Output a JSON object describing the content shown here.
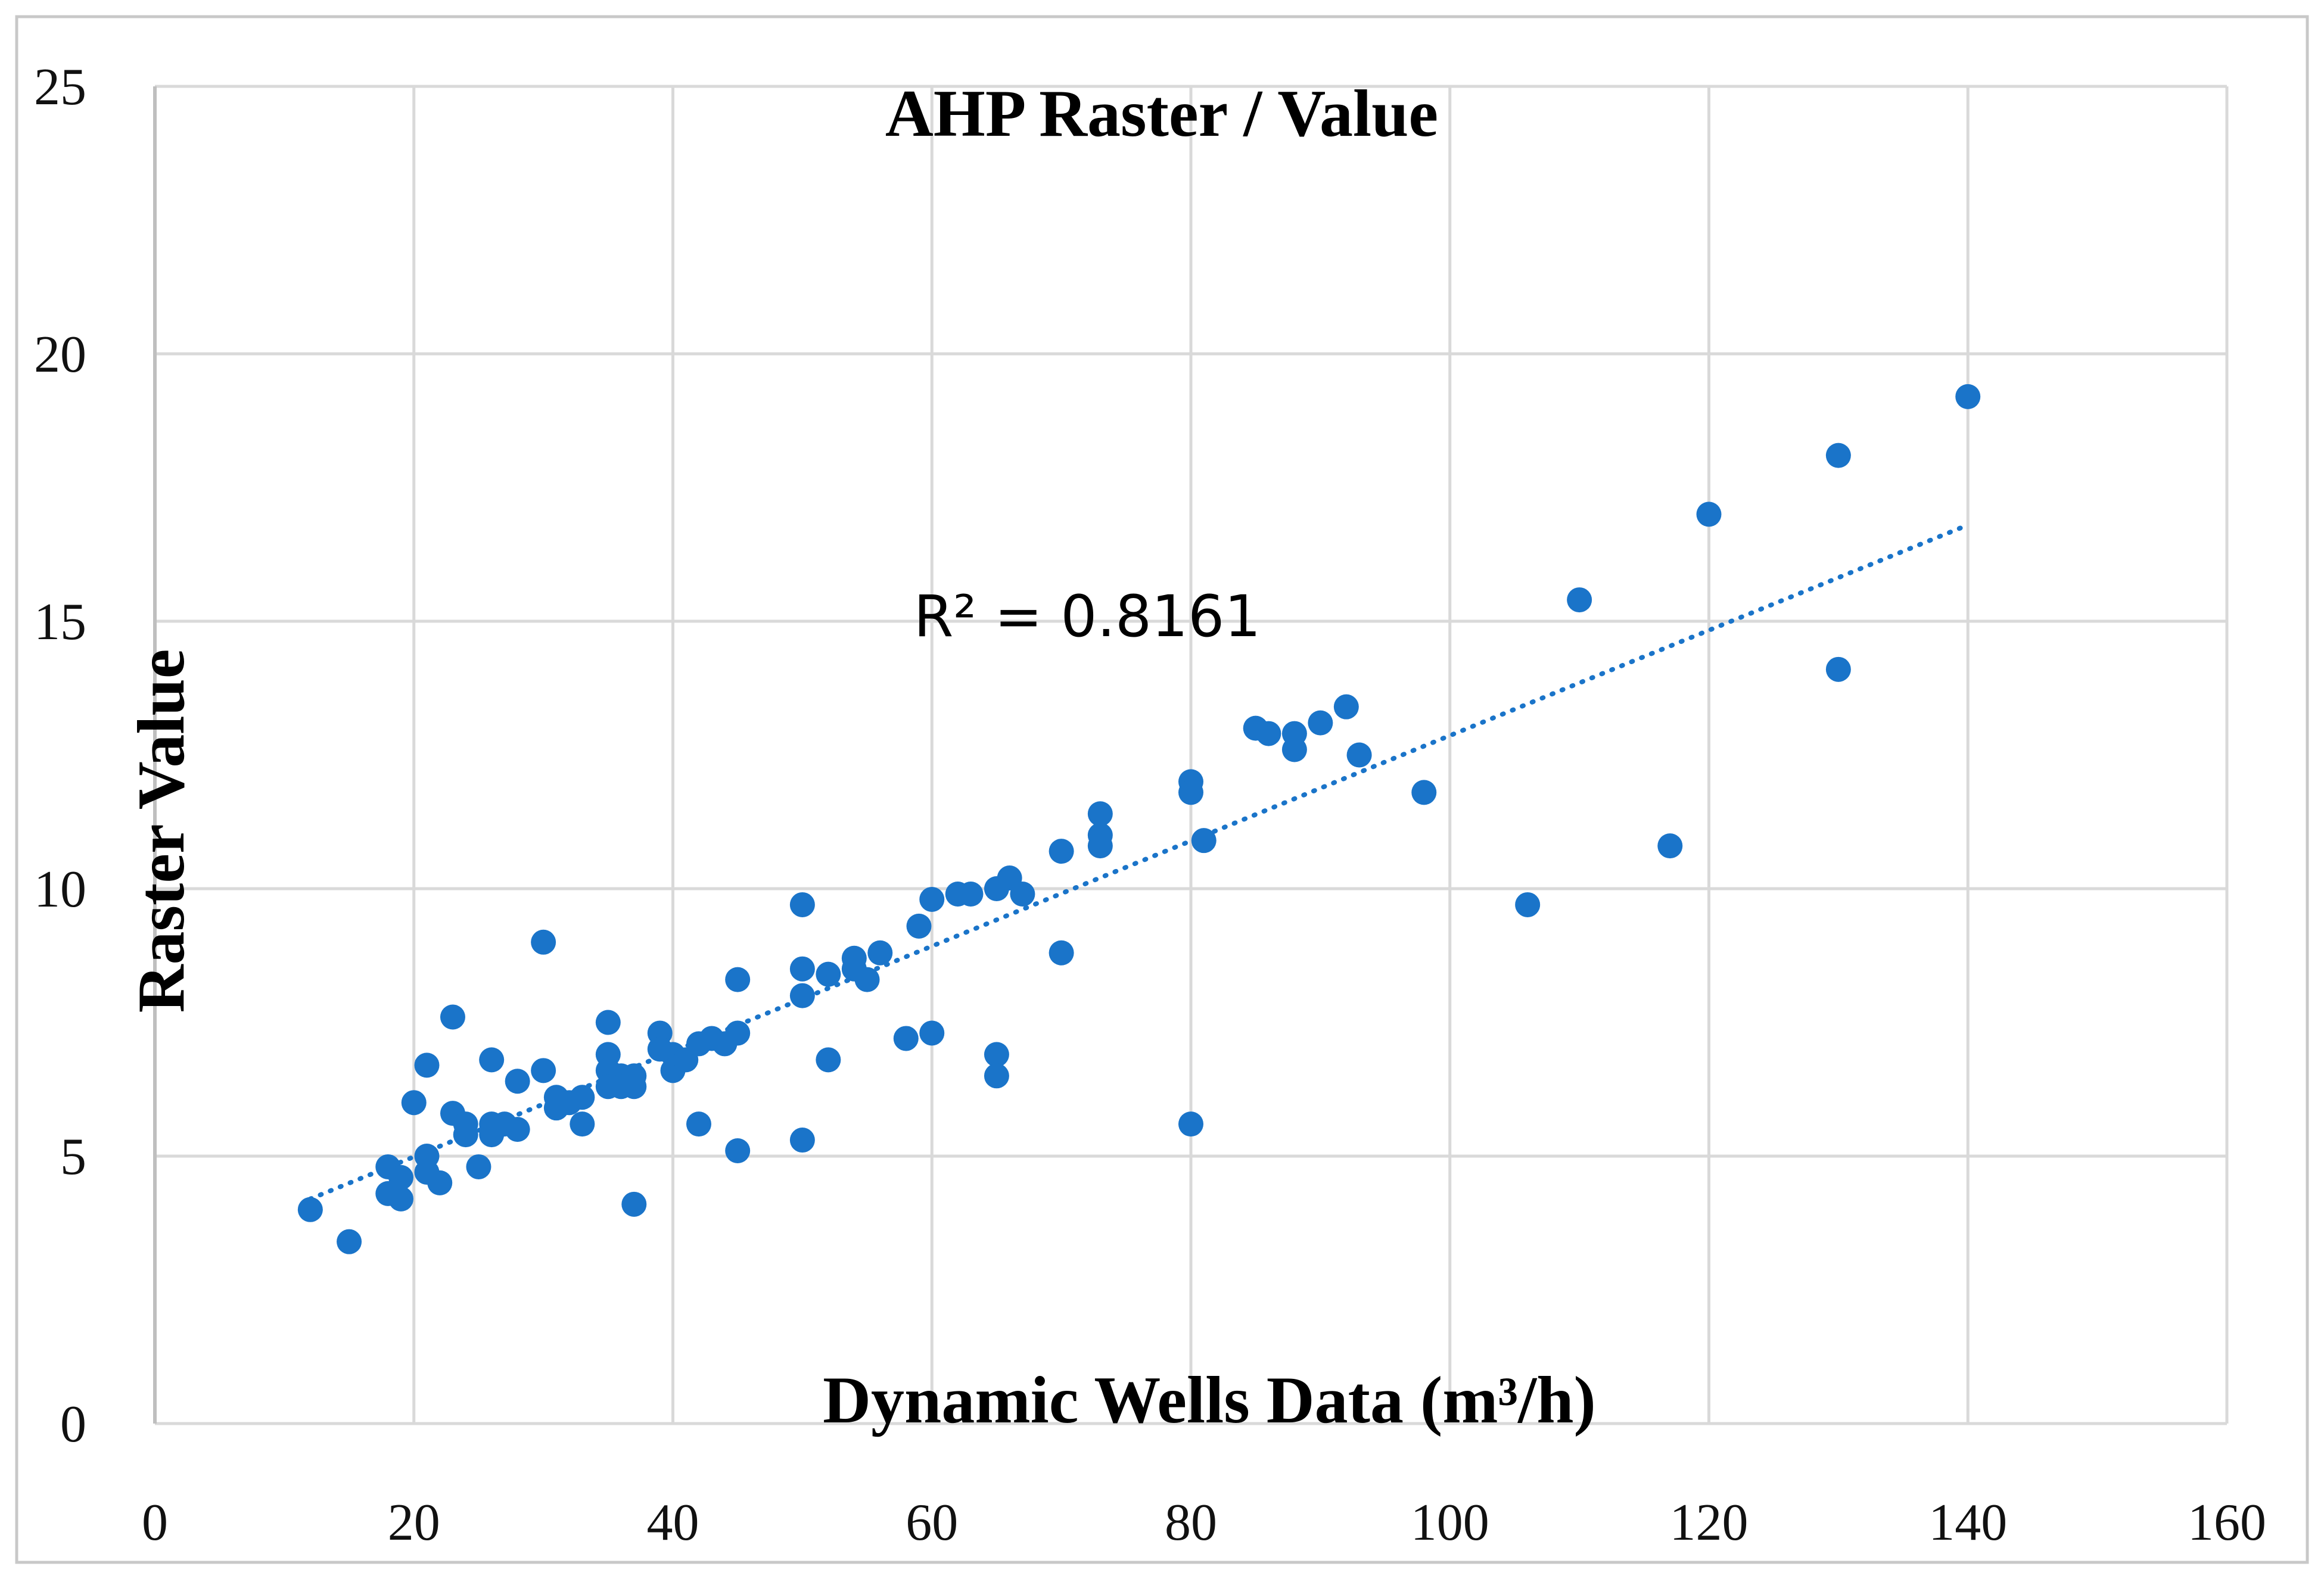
{
  "chart_data": {
    "type": "scatter",
    "title": "AHP Raster / Value",
    "xlabel": "Dynamic Wells Data (m³/h)",
    "ylabel": "Raster Value",
    "annotation": "R² = 0.8161",
    "xlim": [
      0,
      160
    ],
    "ylim": [
      0,
      25
    ],
    "x_ticks": [
      "0",
      "20",
      "40",
      "60",
      "80",
      "100",
      "120",
      "140",
      "160"
    ],
    "y_ticks": [
      "0",
      "5",
      "10",
      "15",
      "20",
      "25"
    ],
    "grid": true,
    "colors": {
      "points": "#1a74c9",
      "trendline": "#1a74c9",
      "grid": "#d9d9d9",
      "frame": "#bfbfbf"
    },
    "trendline": {
      "type": "linear",
      "x_range": [
        12,
        140
      ],
      "y_range": [
        4.2,
        16.8
      ]
    },
    "series": [
      {
        "name": "Raster Value",
        "points": [
          [
            12,
            4.0
          ],
          [
            15,
            3.4
          ],
          [
            18,
            4.8
          ],
          [
            18,
            4.3
          ],
          [
            19,
            4.6
          ],
          [
            19,
            4.2
          ],
          [
            20,
            6.0
          ],
          [
            21,
            6.7
          ],
          [
            21,
            5.0
          ],
          [
            21,
            4.7
          ],
          [
            22,
            4.5
          ],
          [
            23,
            7.6
          ],
          [
            23,
            5.8
          ],
          [
            24,
            5.6
          ],
          [
            24,
            5.4
          ],
          [
            25,
            4.8
          ],
          [
            26,
            6.8
          ],
          [
            26,
            5.6
          ],
          [
            26,
            5.4
          ],
          [
            27,
            5.6
          ],
          [
            28,
            6.4
          ],
          [
            28,
            5.5
          ],
          [
            30,
            9.0
          ],
          [
            30,
            6.6
          ],
          [
            31,
            6.1
          ],
          [
            31,
            5.9
          ],
          [
            32,
            6.0
          ],
          [
            33,
            6.1
          ],
          [
            33,
            5.6
          ],
          [
            35,
            7.5
          ],
          [
            35,
            6.9
          ],
          [
            35,
            6.6
          ],
          [
            35,
            6.3
          ],
          [
            36,
            6.5
          ],
          [
            36,
            6.3
          ],
          [
            37,
            6.5
          ],
          [
            37,
            6.3
          ],
          [
            37,
            4.1
          ],
          [
            39,
            7.3
          ],
          [
            39,
            7.0
          ],
          [
            40,
            6.9
          ],
          [
            40,
            6.6
          ],
          [
            41,
            6.8
          ],
          [
            42,
            7.1
          ],
          [
            42,
            5.6
          ],
          [
            43,
            7.2
          ],
          [
            44,
            7.1
          ],
          [
            45,
            8.3
          ],
          [
            45,
            7.3
          ],
          [
            45,
            5.1
          ],
          [
            50,
            9.7
          ],
          [
            50,
            8.5
          ],
          [
            50,
            8.0
          ],
          [
            50,
            5.3
          ],
          [
            52,
            8.4
          ],
          [
            52,
            6.8
          ],
          [
            54,
            8.7
          ],
          [
            54,
            8.5
          ],
          [
            55,
            8.3
          ],
          [
            56,
            8.8
          ],
          [
            58,
            7.2
          ],
          [
            59,
            9.3
          ],
          [
            60,
            9.8
          ],
          [
            60,
            7.3
          ],
          [
            62,
            9.9
          ],
          [
            63,
            9.9
          ],
          [
            65,
            10.0
          ],
          [
            65,
            6.9
          ],
          [
            65,
            6.5
          ],
          [
            66,
            10.2
          ],
          [
            67,
            9.9
          ],
          [
            70,
            10.7
          ],
          [
            70,
            8.8
          ],
          [
            73,
            11.4
          ],
          [
            73,
            11.0
          ],
          [
            73,
            10.8
          ],
          [
            80,
            12.0
          ],
          [
            80,
            11.8
          ],
          [
            80,
            5.6
          ],
          [
            81,
            10.9
          ],
          [
            85,
            13.0
          ],
          [
            86,
            12.9
          ],
          [
            88,
            12.9
          ],
          [
            88,
            12.6
          ],
          [
            90,
            13.1
          ],
          [
            92,
            13.4
          ],
          [
            93,
            12.5
          ],
          [
            98,
            11.8
          ],
          [
            106,
            9.7
          ],
          [
            110,
            15.4
          ],
          [
            117,
            10.8
          ],
          [
            120,
            17.0
          ],
          [
            130,
            18.1
          ],
          [
            130,
            14.1
          ],
          [
            140,
            19.2
          ]
        ]
      }
    ]
  }
}
